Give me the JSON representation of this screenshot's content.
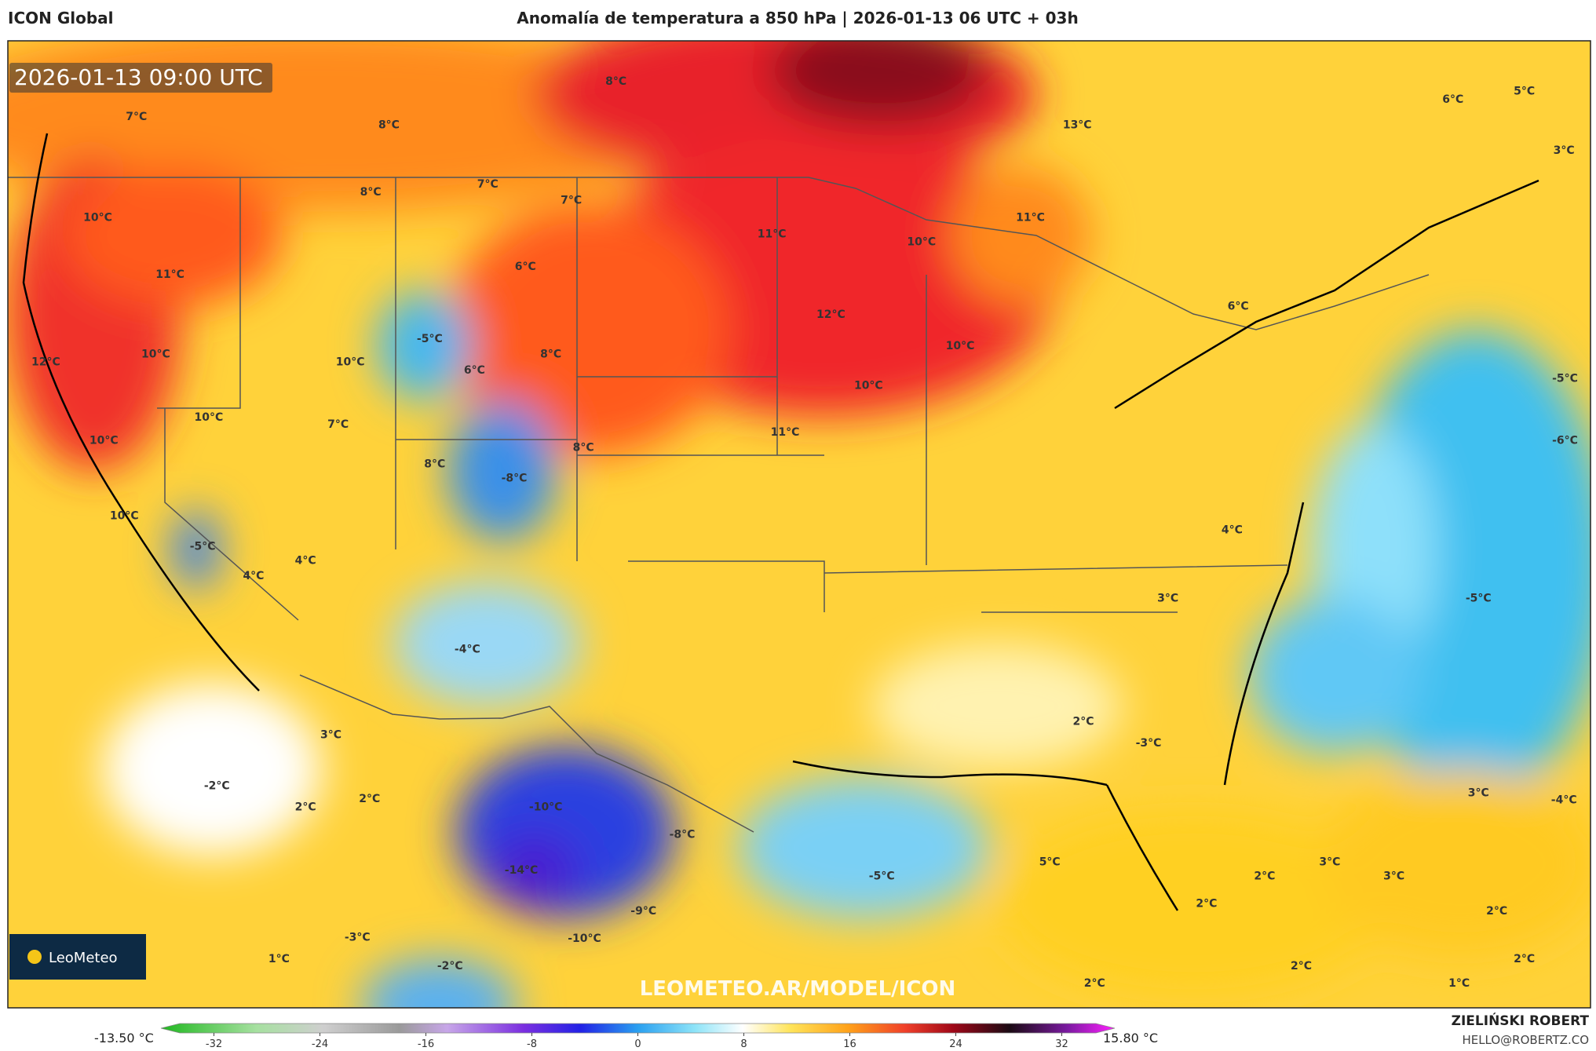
{
  "header": {
    "model": "ICON Global",
    "title": "Anomalía de temperatura a 850 hPa | 2026-01-13 06 UTC + 03h"
  },
  "timestamp": "2026-01-13 09:00 UTC",
  "logo": "LeoMeteo",
  "watermark": "LEOMETEO.AR/MODEL/ICON",
  "author": {
    "name": "ZIELIŃSKI ROBERT",
    "email": "HELLO@ROBERTZ.CO"
  },
  "colorbar": {
    "min_label": "-13.50 °C",
    "max_label": "15.80 °C",
    "lim": [
      -36,
      36
    ],
    "ticks": [
      -32,
      -24,
      -16,
      -8,
      0,
      8,
      16,
      24,
      32
    ]
  },
  "map_labels": [
    "7°C",
    "8°C",
    "8°C",
    "13°C",
    "6°C",
    "5°C",
    "3°C",
    "10°C",
    "8°C",
    "7°C",
    "7°C",
    "11°C",
    "10°C",
    "11°C",
    "11°C",
    "6°C",
    "6°C",
    "12°C",
    "10°C",
    "10°C",
    "-5°C",
    "6°C",
    "8°C",
    "12°C",
    "10°C",
    "10°C",
    "-5°C",
    "10°C",
    "7°C",
    "10°C",
    "11°C",
    "8°C",
    "8°C",
    "-8°C",
    "-6°C",
    "10°C",
    "-5°C",
    "4°C",
    "4°C",
    "4°C",
    "3°C",
    "-5°C",
    "-4°C",
    "3°C",
    "2°C",
    "-3°C",
    "-2°C",
    "2°C",
    "2°C",
    "-10°C",
    "3°C",
    "-4°C",
    "-8°C",
    "5°C",
    "-14°C",
    "-5°C",
    "3°C",
    "2°C",
    "3°C",
    "2°C",
    "-9°C",
    "2°C",
    "-3°C",
    "-10°C",
    "1°C",
    "-2°C",
    "2°C",
    "2°C",
    "1°C",
    "2°C"
  ]
}
